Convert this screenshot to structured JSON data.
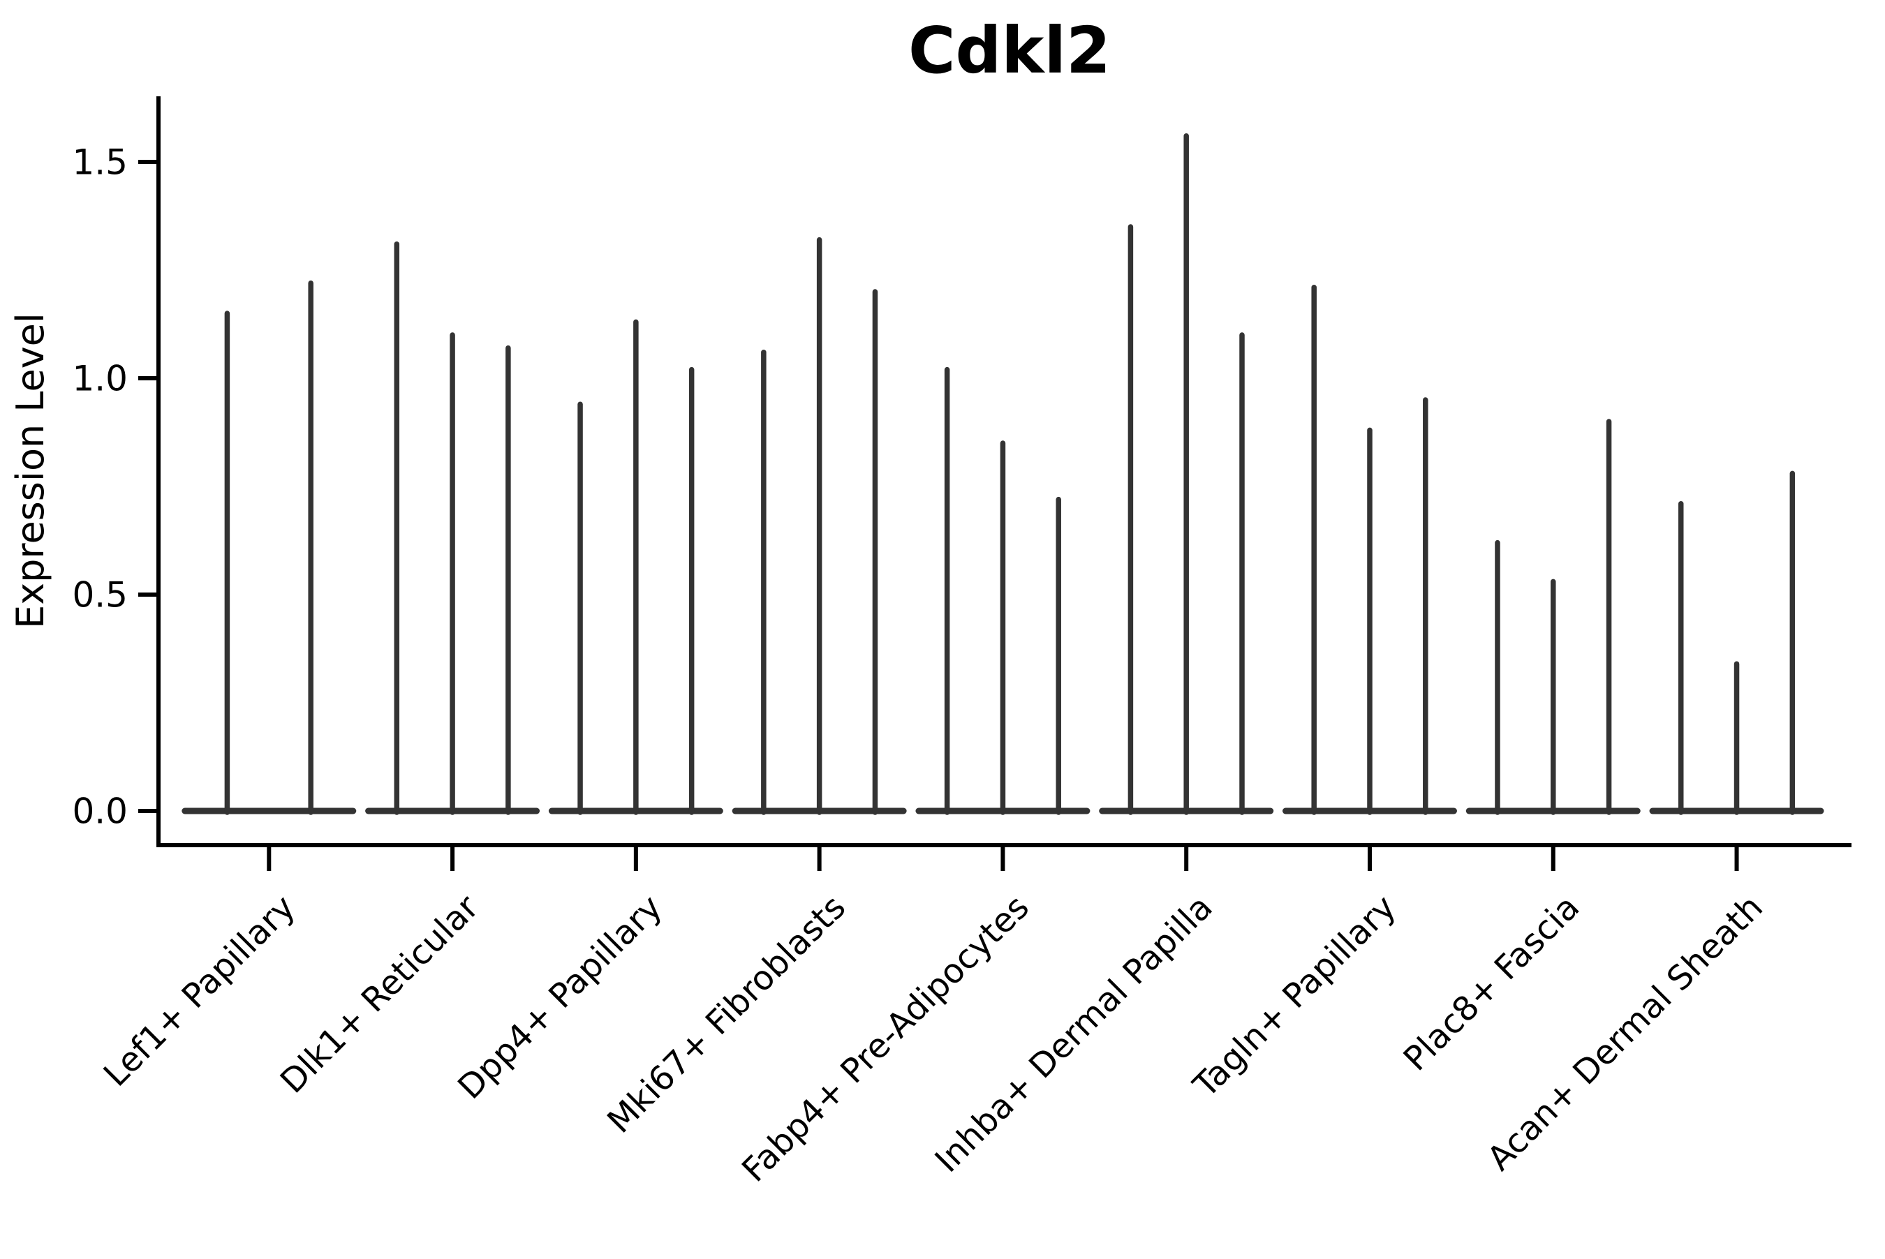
{
  "chart_data": {
    "type": "violin",
    "title": "Cdkl2",
    "xlabel": "",
    "ylabel": "Expression Level",
    "ytick_labels": [
      "0.0",
      "0.5",
      "1.0",
      "1.5"
    ],
    "ytick_values": [
      0.0,
      0.5,
      1.0,
      1.5
    ],
    "ylim": [
      0.0,
      1.65
    ],
    "grid": "off",
    "legend": "none",
    "categories": [
      "Lef1+ Papillary",
      "Dlk1+ Reticular",
      "Dpp4+ Papillary",
      "Mki67+ Fibroblasts",
      "Fabp4+ Pre-Adipocytes",
      "Inhba+ Dermal Papilla",
      "Tagln+ Papillary",
      "Plac8+ Fascia",
      "Acan+ Dermal Sheath"
    ],
    "violin_max_values": [
      [
        1.15,
        1.22
      ],
      [
        1.31,
        1.1,
        1.07
      ],
      [
        0.94,
        1.13,
        1.02
      ],
      [
        1.06,
        1.32,
        1.2
      ],
      [
        1.02,
        0.85,
        0.72
      ],
      [
        1.35,
        1.56,
        1.1
      ],
      [
        1.21,
        0.88,
        0.95
      ],
      [
        0.62,
        0.53,
        0.9
      ],
      [
        0.71,
        0.34,
        0.78
      ]
    ],
    "violin_min_value": 0.0,
    "description_note": "Each violin is an extremely narrow spike rising from a wide flat base at expression 0",
    "colors": {
      "violin": "#333333",
      "axis": "#000000",
      "text": "#000000",
      "background": "#ffffff"
    }
  }
}
